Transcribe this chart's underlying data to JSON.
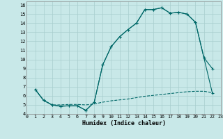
{
  "xlabel": "Humidex (Indice chaleur)",
  "background_color": "#c8e8e8",
  "grid_color": "#a8cece",
  "line_color": "#006868",
  "xlim": [
    0,
    23
  ],
  "ylim": [
    4,
    16.4
  ],
  "xtick_vals": [
    0,
    1,
    2,
    3,
    4,
    5,
    6,
    7,
    8,
    9,
    10,
    11,
    12,
    13,
    14,
    15,
    16,
    17,
    18,
    19,
    20,
    21,
    22,
    23
  ],
  "ytick_vals": [
    4,
    5,
    6,
    7,
    8,
    9,
    10,
    11,
    12,
    13,
    14,
    15,
    16
  ],
  "line1_x": [
    1,
    2,
    3,
    4,
    5,
    6,
    7,
    8,
    9,
    10,
    11,
    12,
    13,
    14,
    15,
    16,
    17,
    18,
    19,
    20,
    21,
    22
  ],
  "line1_y": [
    6.7,
    5.5,
    5.0,
    4.85,
    4.9,
    4.9,
    4.4,
    5.3,
    9.4,
    11.4,
    12.5,
    13.3,
    14.0,
    15.5,
    15.5,
    15.7,
    15.1,
    15.2,
    15.0,
    14.1,
    10.2,
    9.0
  ],
  "line2_x": [
    1,
    2,
    3,
    4,
    5,
    6,
    7,
    8,
    9,
    10,
    11,
    12,
    13,
    14,
    15,
    16,
    17,
    18,
    19,
    20,
    21,
    22
  ],
  "line2_y": [
    6.7,
    5.5,
    5.0,
    4.85,
    4.9,
    4.9,
    4.4,
    5.3,
    9.4,
    11.4,
    12.5,
    13.3,
    14.0,
    15.5,
    15.5,
    15.7,
    15.1,
    15.2,
    15.0,
    14.1,
    10.2,
    6.3
  ],
  "line3_x": [
    1,
    2,
    3,
    4,
    5,
    6,
    7,
    8,
    9,
    10,
    11,
    12,
    13,
    14,
    15,
    16,
    17,
    18,
    19,
    20,
    21,
    22
  ],
  "line3_y": [
    6.7,
    5.5,
    5.0,
    5.0,
    5.05,
    5.05,
    5.0,
    5.1,
    5.3,
    5.45,
    5.55,
    5.65,
    5.8,
    5.95,
    6.05,
    6.15,
    6.25,
    6.35,
    6.45,
    6.5,
    6.5,
    6.35
  ]
}
